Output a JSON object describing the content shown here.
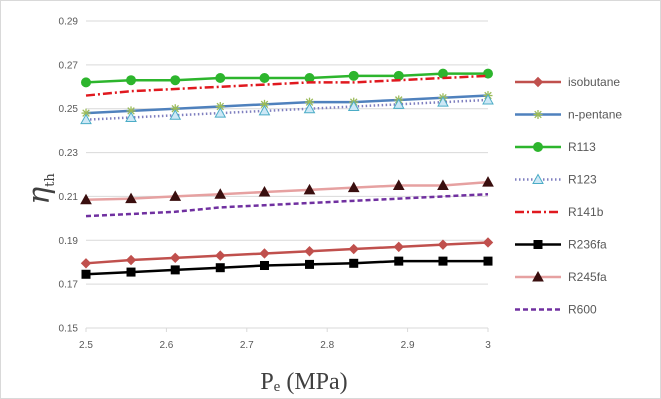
{
  "chart_data": {
    "type": "line",
    "title": "",
    "xlabel_main": "P",
    "xlabel_sub": "e",
    "xlabel_unit": " (MPa)",
    "ylabel_main": "η",
    "ylabel_sub": "th",
    "xlim": [
      2.5,
      3.0
    ],
    "ylim": [
      0.15,
      0.29
    ],
    "x_ticks": [
      "2.5",
      "2.6",
      "2.7",
      "2.8",
      "2.9",
      "3"
    ],
    "y_ticks": [
      "0.15",
      "0.17",
      "0.19",
      "0.21",
      "0.23",
      "0.25",
      "0.27",
      "0.29"
    ],
    "grid": true,
    "legend_position": "right",
    "x": [
      2.5,
      2.556,
      2.611,
      2.667,
      2.722,
      2.778,
      2.833,
      2.889,
      2.944,
      3.0
    ],
    "series": [
      {
        "name": "isobutane",
        "color": "#c0504d",
        "marker": "diamond",
        "dash": "solid",
        "values": [
          0.1795,
          0.181,
          0.182,
          0.183,
          0.184,
          0.185,
          0.186,
          0.187,
          0.188,
          0.189
        ]
      },
      {
        "name": "n-pentane",
        "color": "#4f81bd",
        "marker": "star",
        "dash": "solid",
        "values": [
          0.248,
          0.249,
          0.25,
          0.251,
          0.252,
          0.253,
          0.253,
          0.254,
          0.255,
          0.256
        ]
      },
      {
        "name": "R113",
        "color": "#2db52d",
        "marker": "circle",
        "dash": "solid",
        "values": [
          0.262,
          0.263,
          0.263,
          0.264,
          0.264,
          0.264,
          0.265,
          0.265,
          0.266,
          0.266
        ]
      },
      {
        "name": "R123",
        "color": "#7f7fbf",
        "marker": "triangle-open",
        "dash": "dotted",
        "values": [
          0.245,
          0.246,
          0.247,
          0.248,
          0.249,
          0.25,
          0.251,
          0.252,
          0.253,
          0.254
        ]
      },
      {
        "name": "R141b",
        "color": "#e0191f",
        "marker": "none",
        "dash": "dashdot",
        "values": [
          0.256,
          0.258,
          0.259,
          0.26,
          0.261,
          0.262,
          0.262,
          0.263,
          0.264,
          0.265
        ]
      },
      {
        "name": "R236fa",
        "color": "#000000",
        "marker": "square",
        "dash": "solid",
        "values": [
          0.1745,
          0.1755,
          0.1765,
          0.1775,
          0.1785,
          0.179,
          0.1795,
          0.1805,
          0.1805,
          0.1805
        ]
      },
      {
        "name": "R245fa",
        "color": "#e6a1a1",
        "marker": "triangle-dark",
        "dash": "solid",
        "values": [
          0.2085,
          0.209,
          0.21,
          0.211,
          0.212,
          0.213,
          0.214,
          0.215,
          0.215,
          0.2165
        ]
      },
      {
        "name": "R600",
        "color": "#7030a0",
        "marker": "none",
        "dash": "dashed",
        "values": [
          0.201,
          0.202,
          0.203,
          0.205,
          0.206,
          0.207,
          0.208,
          0.209,
          0.21,
          0.211
        ]
      }
    ]
  }
}
